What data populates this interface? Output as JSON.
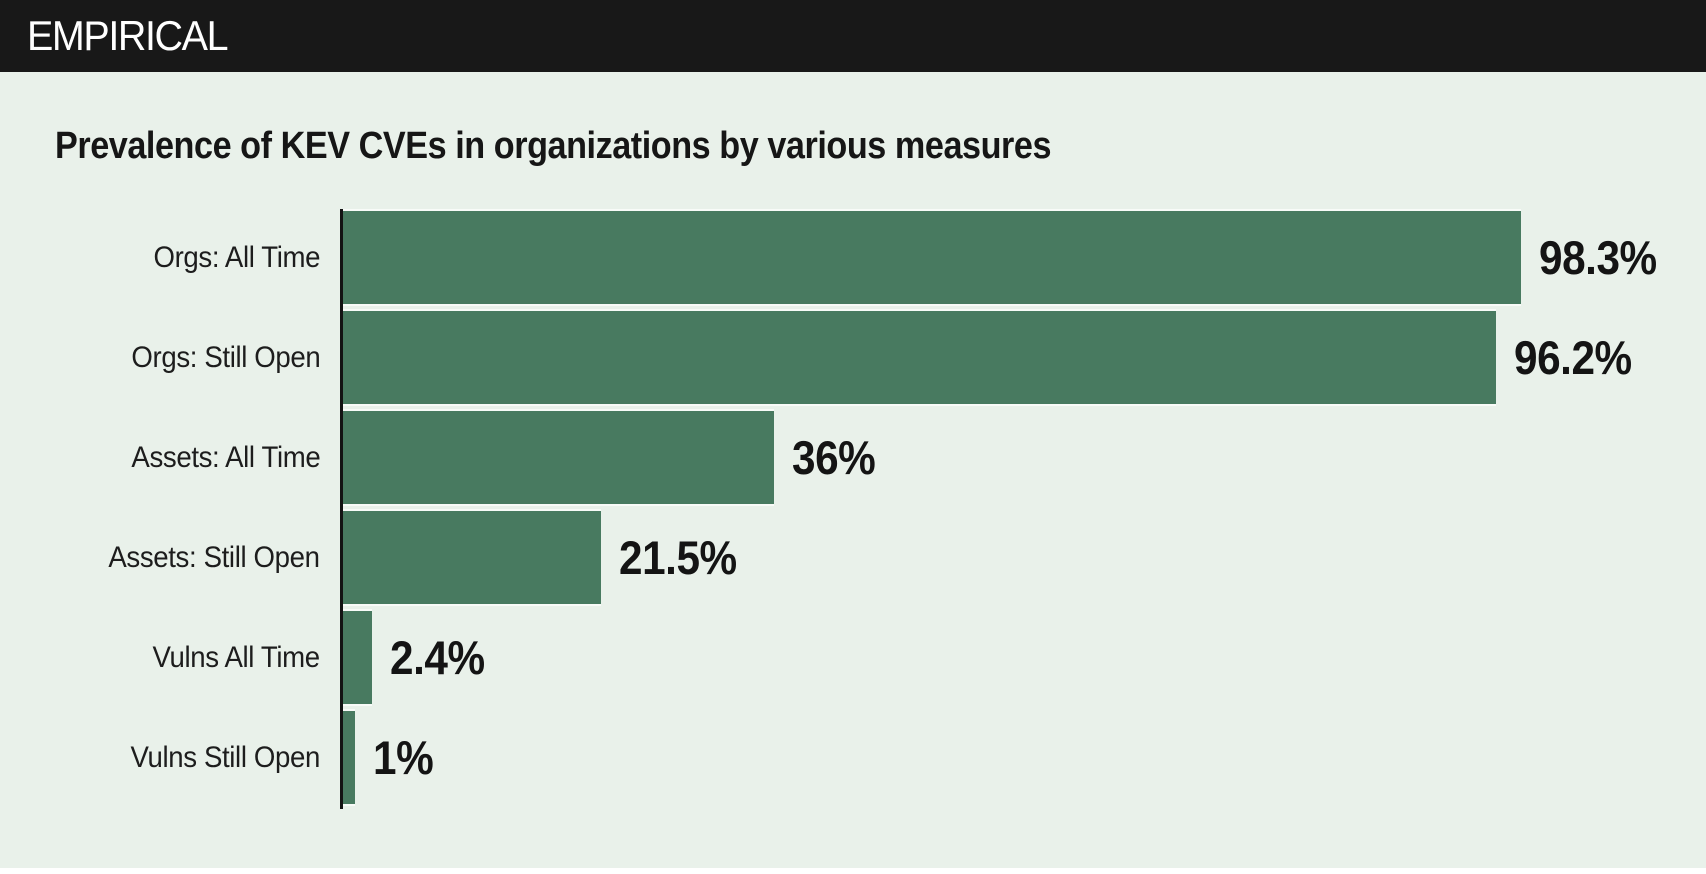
{
  "header": {
    "logo": "EMPIRICAL"
  },
  "title": "Prevalence of KEV CVEs in organizations by various measures",
  "chart_data": {
    "type": "bar",
    "orientation": "horizontal",
    "title": "Prevalence of KEV CVEs in organizations by various measures",
    "categories": [
      "Orgs: All Time",
      "Orgs: Still Open",
      "Assets: All Time",
      "Assets: Still Open",
      "Vulns All Time",
      "Vulns Still Open"
    ],
    "values": [
      98.3,
      96.2,
      36,
      21.5,
      2.4,
      1
    ],
    "value_labels": [
      "98.3%",
      "96.2%",
      "36%",
      "21.5%",
      "2.4%",
      "1%"
    ],
    "xlabel": "",
    "ylabel": "",
    "xlim": [
      0,
      100
    ],
    "grid": false,
    "legend": null,
    "value_label_position": "outside-end",
    "colors": {
      "bar": "#487a60",
      "background": "#e9f1ea",
      "header_background": "#181818",
      "logo_text": "#ffffff",
      "axis": "#131313",
      "text": "#161616"
    }
  }
}
